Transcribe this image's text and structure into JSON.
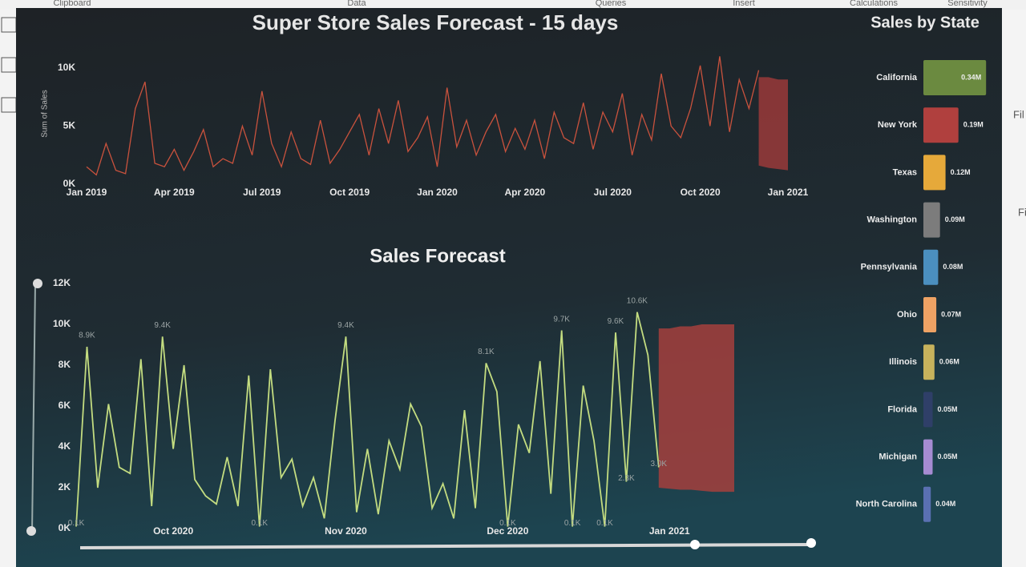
{
  "ribbon": [
    "Clipboard",
    "Data",
    "Queries",
    "Insert",
    "Calculations",
    "Sensitivity"
  ],
  "side_pane": [
    "Fil",
    "Fi"
  ],
  "chart_data": [
    {
      "type": "line",
      "title": "Super Store Sales Forecast - 15 days",
      "ylabel": "Sum of Sales",
      "color": "#c9523d",
      "band_color": "#9a3a3a",
      "categories": [
        "Jan 2019",
        null,
        null,
        null,
        null,
        null,
        null,
        null,
        null,
        "Apr 2019",
        null,
        null,
        null,
        null,
        null,
        null,
        null,
        null,
        "Jul 2019",
        null,
        null,
        null,
        null,
        null,
        null,
        null,
        null,
        "Oct 2019",
        null,
        null,
        null,
        null,
        null,
        null,
        null,
        null,
        "Jan 2020",
        null,
        null,
        null,
        null,
        null,
        null,
        null,
        null,
        "Apr 2020",
        null,
        null,
        null,
        null,
        null,
        null,
        null,
        null,
        "Jul 2020",
        null,
        null,
        null,
        null,
        null,
        null,
        null,
        null,
        "Oct 2020",
        null,
        null,
        null,
        null,
        null,
        null,
        null,
        null,
        "Jan 2021"
      ],
      "values": [
        1500,
        800,
        3500,
        1200,
        900,
        6500,
        8800,
        1800,
        1500,
        3000,
        1200,
        2800,
        4700,
        1500,
        2200,
        1800,
        5000,
        2500,
        8000,
        3500,
        1500,
        4500,
        2200,
        1700,
        5500,
        1800,
        3000,
        4500,
        6000,
        2500,
        6500,
        3500,
        7200,
        2800,
        4000,
        5800,
        1500,
        8300,
        3200,
        5500,
        2500,
        4500,
        6000,
        2800,
        4800,
        3000,
        5500,
        2200,
        6200,
        4000,
        3500,
        7000,
        3000,
        6200,
        4500,
        7800,
        2500,
        6000,
        3800,
        9500,
        5000,
        4000,
        6500,
        10200,
        5000,
        11000,
        4500,
        9000,
        6500,
        9800,
        null,
        null,
        null
      ],
      "band_upper": [
        null,
        null,
        null,
        null,
        null,
        null,
        null,
        null,
        null,
        null,
        null,
        null,
        null,
        null,
        null,
        null,
        null,
        null,
        null,
        null,
        null,
        null,
        null,
        null,
        null,
        null,
        null,
        null,
        null,
        null,
        null,
        null,
        null,
        null,
        null,
        null,
        null,
        null,
        null,
        null,
        null,
        null,
        null,
        null,
        null,
        null,
        null,
        null,
        null,
        null,
        null,
        null,
        null,
        null,
        null,
        null,
        null,
        null,
        null,
        null,
        null,
        null,
        null,
        null,
        null,
        null,
        null,
        null,
        null,
        9200,
        9200,
        9000,
        9000
      ],
      "band_lower": [
        null,
        null,
        null,
        null,
        null,
        null,
        null,
        null,
        null,
        null,
        null,
        null,
        null,
        null,
        null,
        null,
        null,
        null,
        null,
        null,
        null,
        null,
        null,
        null,
        null,
        null,
        null,
        null,
        null,
        null,
        null,
        null,
        null,
        null,
        null,
        null,
        null,
        null,
        null,
        null,
        null,
        null,
        null,
        null,
        null,
        null,
        null,
        null,
        null,
        null,
        null,
        null,
        null,
        null,
        null,
        null,
        null,
        null,
        null,
        null,
        null,
        null,
        null,
        null,
        null,
        null,
        null,
        null,
        null,
        1600,
        1400,
        1300,
        1200
      ],
      "ylim": [
        0,
        11500
      ],
      "yticks": [
        {
          "value": 0,
          "label": "0K"
        },
        {
          "value": 5000,
          "label": "5K"
        },
        {
          "value": 10000,
          "label": "10K"
        }
      ]
    },
    {
      "type": "line",
      "title": "Sales Forecast",
      "color": "#c3dc80",
      "band_color": "#a43f3d",
      "categories": [
        null,
        null,
        null,
        null,
        null,
        null,
        null,
        null,
        null,
        "Oct 2020",
        null,
        null,
        null,
        null,
        null,
        null,
        null,
        null,
        null,
        null,
        null,
        null,
        null,
        null,
        null,
        "Nov 2020",
        null,
        null,
        null,
        null,
        null,
        null,
        null,
        null,
        null,
        null,
        null,
        null,
        null,
        null,
        "Dec 2020",
        null,
        null,
        null,
        null,
        null,
        null,
        null,
        null,
        null,
        null,
        null,
        null,
        null,
        null,
        "Jan 2021",
        null,
        null,
        null,
        null,
        null,
        null
      ],
      "values": [
        100,
        8900,
        2000,
        6100,
        3000,
        2700,
        8300,
        1100,
        9400,
        3900,
        8000,
        2400,
        1600,
        1200,
        3500,
        1100,
        7500,
        100,
        7800,
        2500,
        3400,
        1100,
        2500,
        500,
        5300,
        9400,
        800,
        3900,
        700,
        4300,
        2900,
        6100,
        5000,
        1000,
        2200,
        500,
        5800,
        1000,
        8100,
        6700,
        100,
        5100,
        3700,
        8200,
        1700,
        9700,
        100,
        7000,
        4300,
        100,
        9600,
        2300,
        10600,
        8500,
        3000,
        null,
        null,
        null,
        null,
        null,
        null,
        null
      ],
      "value_labels": [
        "0.1K",
        "8.9K",
        null,
        null,
        null,
        null,
        null,
        null,
        "9.4K",
        null,
        null,
        null,
        null,
        null,
        null,
        null,
        null,
        "0.1K",
        null,
        null,
        null,
        null,
        null,
        null,
        null,
        "9.4K",
        null,
        null,
        null,
        null,
        null,
        null,
        null,
        null,
        null,
        null,
        null,
        null,
        "8.1K",
        null,
        "0.1K",
        null,
        null,
        null,
        null,
        "9.7K",
        "0.1K",
        null,
        null,
        "0.1K",
        "9.6K",
        "2.3K",
        "10.6K",
        null,
        "3.0K",
        null,
        null,
        null,
        null,
        null,
        null,
        null
      ],
      "band_upper": [
        null,
        null,
        null,
        null,
        null,
        null,
        null,
        null,
        null,
        null,
        null,
        null,
        null,
        null,
        null,
        null,
        null,
        null,
        null,
        null,
        null,
        null,
        null,
        null,
        null,
        null,
        null,
        null,
        null,
        null,
        null,
        null,
        null,
        null,
        null,
        null,
        null,
        null,
        null,
        null,
        null,
        null,
        null,
        null,
        null,
        null,
        null,
        null,
        null,
        null,
        null,
        null,
        null,
        null,
        9800,
        9800,
        9900,
        9900,
        10000,
        10000,
        10000,
        10000
      ],
      "band_lower": [
        null,
        null,
        null,
        null,
        null,
        null,
        null,
        null,
        null,
        null,
        null,
        null,
        null,
        null,
        null,
        null,
        null,
        null,
        null,
        null,
        null,
        null,
        null,
        null,
        null,
        null,
        null,
        null,
        null,
        null,
        null,
        null,
        null,
        null,
        null,
        null,
        null,
        null,
        null,
        null,
        null,
        null,
        null,
        null,
        null,
        null,
        null,
        null,
        null,
        null,
        null,
        null,
        null,
        null,
        2000,
        1950,
        1900,
        1900,
        1850,
        1800,
        1800,
        1800
      ],
      "ylim": [
        0,
        12000
      ],
      "yticks": [
        {
          "value": 0,
          "label": "0K"
        },
        {
          "value": 2000,
          "label": "2K"
        },
        {
          "value": 4000,
          "label": "4K"
        },
        {
          "value": 6000,
          "label": "6K"
        },
        {
          "value": 8000,
          "label": "8K"
        },
        {
          "value": 10000,
          "label": "10K"
        },
        {
          "value": 12000,
          "label": "12K"
        }
      ]
    },
    {
      "type": "hbar",
      "title": "Sales by State",
      "categories": [
        "California",
        "New York",
        "Texas",
        "Washington",
        "Pennsylvania",
        "Ohio",
        "Illinois",
        "Florida",
        "Michigan",
        "North Carolina"
      ],
      "values": [
        0.34,
        0.19,
        0.12,
        0.09,
        0.08,
        0.07,
        0.06,
        0.05,
        0.05,
        0.04
      ],
      "value_labels": [
        "0.34M",
        "0.19M",
        "0.12M",
        "0.09M",
        "0.08M",
        "0.07M",
        "0.06M",
        "0.05M",
        "0.05M",
        "0.04M"
      ],
      "colors": [
        "#6b8a40",
        "#b0403e",
        "#e6a93a",
        "#7c7c7c",
        "#4b8fbf",
        "#eea264",
        "#c7b25c",
        "#2f3f68",
        "#a68bd2",
        "#5a70b2"
      ]
    }
  ]
}
